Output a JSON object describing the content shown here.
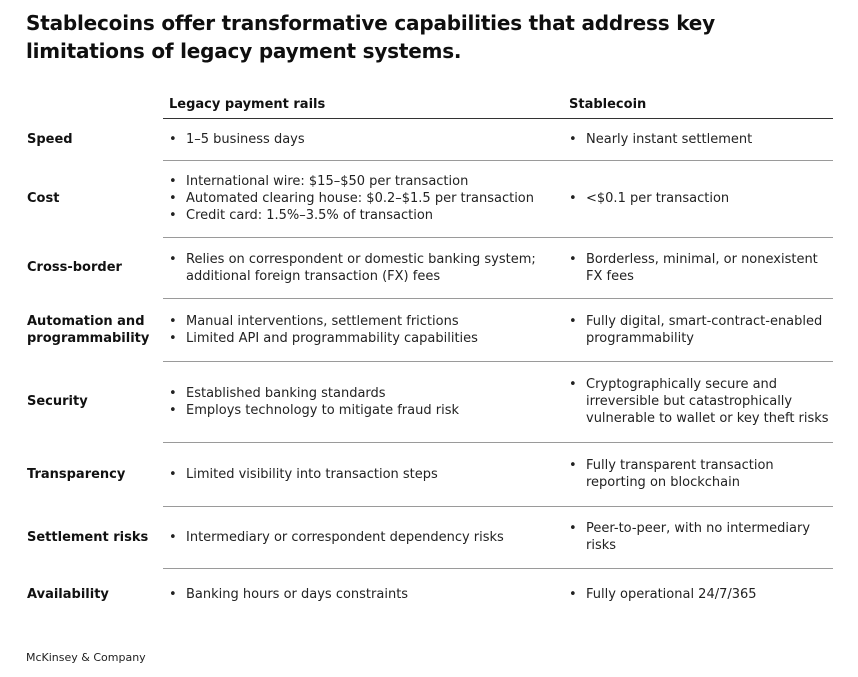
{
  "title": "Stablecoins offer transformative capabilities that address key limitations of legacy payment systems.",
  "columns": {
    "legacy": "Legacy payment rails",
    "stablecoin": "Stablecoin"
  },
  "rows": [
    {
      "label": "Speed",
      "legacy": [
        "1–5 business days"
      ],
      "stablecoin": [
        "Nearly instant settlement"
      ]
    },
    {
      "label": "Cost",
      "legacy": [
        "International wire: $15–$50 per transaction",
        "Automated clearing house: $0.2–$1.5 per transaction",
        "Credit card: 1.5%–3.5% of transaction"
      ],
      "stablecoin": [
        "<$0.1 per transaction"
      ]
    },
    {
      "label": "Cross-border",
      "legacy": [
        "Relies on correspondent or domestic banking system; additional foreign transaction (FX) fees"
      ],
      "stablecoin": [
        "Borderless, minimal, or nonexistent FX fees"
      ]
    },
    {
      "label": "Automation and programmability",
      "legacy": [
        "Manual interventions, settlement frictions",
        "Limited API and programmability capabilities"
      ],
      "stablecoin": [
        "Fully digital, smart-contract-enabled programmability"
      ]
    },
    {
      "label": "Security",
      "legacy": [
        "Established banking standards",
        "Employs technology to mitigate fraud risk"
      ],
      "stablecoin": [
        "Cryptographically secure and irreversible but catastrophically vulnerable to wallet or key theft risks"
      ]
    },
    {
      "label": "Transparency",
      "legacy": [
        "Limited visibility into transaction steps"
      ],
      "stablecoin": [
        "Fully transparent transaction reporting on blockchain"
      ]
    },
    {
      "label": "Settlement risks",
      "legacy": [
        "Intermediary or correspondent dependency risks"
      ],
      "stablecoin": [
        "Peer-to-peer, with no intermediary risks"
      ]
    },
    {
      "label": "Availability",
      "legacy": [
        "Banking hours or days constraints"
      ],
      "stablecoin": [
        "Fully operational 24/7/365"
      ]
    }
  ],
  "footer": "McKinsey & Company"
}
